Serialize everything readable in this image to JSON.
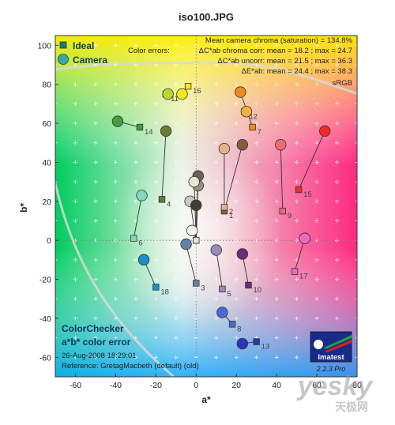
{
  "chart_data": {
    "type": "scatter",
    "title": "iso100.JPG",
    "xlabel": "a*",
    "ylabel": "b*",
    "xlim": [
      -70,
      80
    ],
    "ylim": [
      -70,
      105
    ],
    "xticks": [
      -60,
      -40,
      -20,
      0,
      20,
      40,
      60,
      80
    ],
    "yticks": [
      -60,
      -40,
      -20,
      0,
      20,
      40,
      60,
      80,
      100
    ],
    "grid": true,
    "legend": {
      "position": "top-left",
      "ideal_label": "Ideal",
      "camera_label": "Camera"
    },
    "stats": {
      "mean_chroma": "Mean camera chroma (saturation) = 134.8%",
      "line1_label": "Color errors:",
      "line1": "ΔC*ab chroma corr:  mean = 18.2 ;  max = 24.7",
      "line2": "ΔC*ab uncorr:  mean = 21.5 ;  max = 36.3",
      "line3": "ΔE*ab:  mean = 24.4 ;  max = 38.3",
      "colorspace": "sRGB"
    },
    "info": {
      "title1": "ColorChecker",
      "title2": "a*b* color error",
      "date": "26-Aug-2008 18:29:01",
      "reference": "Reference: GretagMacbeth (default) (old)"
    },
    "logo": {
      "name": "Imatest",
      "version": "2.2.3  Pro"
    },
    "watermark": {
      "text": "yesky",
      "sub": "天极网"
    },
    "patches": [
      {
        "label": "1",
        "ideal": [
          14,
          15
        ],
        "camera": [
          23,
          49
        ],
        "color": "#8a5a3c"
      },
      {
        "label": "2",
        "ideal": [
          14,
          17
        ],
        "camera": [
          14,
          47
        ],
        "color": "#e8b090"
      },
      {
        "label": "3",
        "ideal": [
          0,
          -22
        ],
        "camera": [
          -5,
          -2
        ],
        "color": "#6680a8"
      },
      {
        "label": "4",
        "ideal": [
          -17,
          21
        ],
        "camera": [
          -15,
          56
        ],
        "color": "#6a7a35"
      },
      {
        "label": "5",
        "ideal": [
          13,
          -25
        ],
        "camera": [
          10,
          -5
        ],
        "color": "#9a8ab8"
      },
      {
        "label": "6",
        "ideal": [
          -31,
          1
        ],
        "camera": [
          -27,
          23
        ],
        "color": "#80d8bf"
      },
      {
        "label": "7",
        "ideal": [
          28,
          58
        ],
        "camera": [
          22,
          76
        ],
        "color": "#f08a20"
      },
      {
        "label": "8",
        "ideal": [
          18,
          -43
        ],
        "camera": [
          13,
          -37
        ],
        "color": "#4a6ad8"
      },
      {
        "label": "9",
        "ideal": [
          43,
          15
        ],
        "camera": [
          42,
          49
        ],
        "color": "#f06a76"
      },
      {
        "label": "10",
        "ideal": [
          26,
          -23
        ],
        "camera": [
          23,
          -7
        ],
        "color": "#702a78"
      },
      {
        "label": "11",
        "ideal": [
          -15,
          75
        ],
        "camera": [
          -14,
          75
        ],
        "color": "#b8d830"
      },
      {
        "label": "12",
        "ideal": [
          24,
          66
        ],
        "camera": [
          25,
          66
        ],
        "color": "#f8b040"
      },
      {
        "label": "13",
        "ideal": [
          30,
          -52
        ],
        "camera": [
          23,
          -53
        ],
        "color": "#2838b8"
      },
      {
        "label": "14",
        "ideal": [
          -28,
          58
        ],
        "camera": [
          -39,
          61
        ],
        "color": "#40a040"
      },
      {
        "label": "15",
        "ideal": [
          51,
          26
        ],
        "camera": [
          64,
          56
        ],
        "color": "#f02828"
      },
      {
        "label": "16",
        "ideal": [
          -4,
          79
        ],
        "camera": [
          -7,
          75
        ],
        "color": "#f8e818"
      },
      {
        "label": "17",
        "ideal": [
          49,
          -16
        ],
        "camera": [
          54,
          1
        ],
        "color": "#f068c0"
      },
      {
        "label": "18",
        "ideal": [
          -20,
          -24
        ],
        "camera": [
          -26,
          -10
        ],
        "color": "#1890c8"
      },
      {
        "label": "",
        "ideal": [
          0,
          0
        ],
        "camera": [
          -2,
          5
        ],
        "color": "#f4f4f4"
      },
      {
        "label": "",
        "ideal": [
          0,
          0
        ],
        "camera": [
          -3,
          20
        ],
        "color": "#c8c8c0"
      },
      {
        "label": "",
        "ideal": [
          0,
          0
        ],
        "camera": [
          1,
          28
        ],
        "color": "#9a9080"
      },
      {
        "label": "",
        "ideal": [
          0,
          0
        ],
        "camera": [
          1,
          33
        ],
        "color": "#706050"
      },
      {
        "label": "",
        "ideal": [
          0,
          0
        ],
        "camera": [
          0,
          18
        ],
        "color": "#404030"
      },
      {
        "label": "",
        "ideal": [
          0,
          0
        ],
        "camera": [
          -1,
          30
        ],
        "color": "#e8e4d8"
      }
    ]
  }
}
